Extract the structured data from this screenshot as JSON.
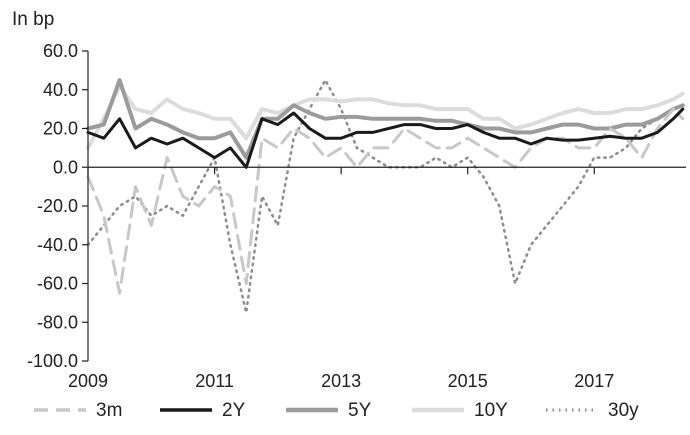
{
  "chart_data": {
    "type": "line",
    "title": "",
    "unit_label": "In bp",
    "xlabel": "",
    "ylabel": "",
    "xlim": [
      2009,
      2018.45
    ],
    "ylim": [
      -100,
      60
    ],
    "yticks": [
      60,
      40,
      20,
      0,
      -20,
      -40,
      -60,
      -80,
      -100
    ],
    "ytick_labels": [
      "60.0",
      "40.0",
      "20.0",
      "0.0",
      "-20.0",
      "-40.0",
      "-60.0",
      "-80.0",
      "-100.0"
    ],
    "xticks": [
      2009,
      2011,
      2013,
      2015,
      2017
    ],
    "xtick_labels": [
      "2009",
      "2011",
      "2013",
      "2015",
      "2017"
    ],
    "grid": false,
    "legend_position": "bottom",
    "x": [
      2009.0,
      2009.25,
      2009.5,
      2009.75,
      2010.0,
      2010.25,
      2010.5,
      2010.75,
      2011.0,
      2011.25,
      2011.5,
      2011.75,
      2012.0,
      2012.25,
      2012.5,
      2012.75,
      2013.0,
      2013.25,
      2013.5,
      2013.75,
      2014.0,
      2014.25,
      2014.5,
      2014.75,
      2015.0,
      2015.25,
      2015.5,
      2015.75,
      2016.0,
      2016.25,
      2016.5,
      2016.75,
      2017.0,
      2017.25,
      2017.5,
      2017.75,
      2018.0,
      2018.25,
      2018.4
    ],
    "series": [
      {
        "name": "3m",
        "color": "#c8c8c8",
        "dash": "14 8",
        "width": 3,
        "values": [
          -5,
          -25,
          -65,
          -10,
          -30,
          5,
          -15,
          -20,
          -10,
          -15,
          -60,
          15,
          10,
          20,
          15,
          5,
          10,
          0,
          10,
          10,
          20,
          15,
          10,
          10,
          15,
          10,
          5,
          0,
          10,
          15,
          15,
          10,
          10,
          20,
          15,
          5,
          20,
          30,
          25
        ]
      },
      {
        "name": "2Y",
        "color": "#1a1a1a",
        "dash": "",
        "width": 3,
        "values": [
          18,
          15,
          25,
          10,
          15,
          12,
          15,
          10,
          5,
          10,
          0,
          25,
          22,
          28,
          20,
          15,
          15,
          18,
          18,
          20,
          22,
          22,
          20,
          20,
          22,
          18,
          15,
          15,
          12,
          15,
          14,
          14,
          15,
          16,
          15,
          15,
          18,
          25,
          30
        ]
      },
      {
        "name": "5Y",
        "color": "#9b9b9b",
        "dash": "",
        "width": 4,
        "values": [
          20,
          22,
          45,
          20,
          25,
          22,
          18,
          15,
          15,
          18,
          5,
          25,
          25,
          32,
          28,
          25,
          26,
          26,
          25,
          25,
          25,
          25,
          24,
          24,
          22,
          20,
          20,
          18,
          18,
          20,
          22,
          22,
          20,
          20,
          22,
          22,
          25,
          30,
          32
        ]
      },
      {
        "name": "10Y",
        "color": "#dcdcdc",
        "dash": "",
        "width": 4,
        "values": [
          10,
          25,
          42,
          30,
          28,
          35,
          30,
          28,
          25,
          25,
          15,
          30,
          28,
          32,
          35,
          35,
          34,
          35,
          35,
          33,
          32,
          32,
          30,
          30,
          30,
          25,
          25,
          20,
          22,
          25,
          28,
          30,
          28,
          28,
          30,
          30,
          32,
          35,
          38
        ]
      },
      {
        "name": "30y",
        "color": "#8c8c8c",
        "dash": "1.5 5",
        "width": 2.5,
        "values": [
          -40,
          -30,
          -20,
          -15,
          -25,
          -20,
          -25,
          -10,
          5,
          -40,
          -75,
          -15,
          -30,
          15,
          30,
          45,
          30,
          10,
          5,
          0,
          0,
          0,
          5,
          0,
          5,
          -5,
          -20,
          -60,
          -40,
          -30,
          -20,
          -10,
          5,
          5,
          10,
          20,
          25,
          30,
          32
        ]
      }
    ]
  }
}
